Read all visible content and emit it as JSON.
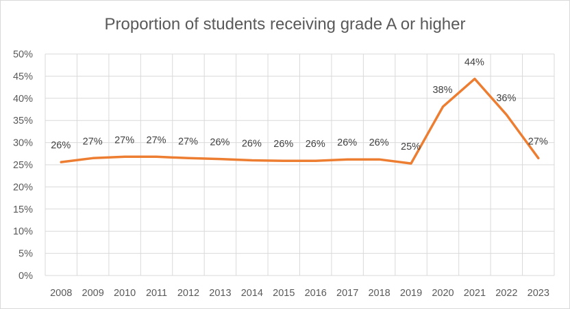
{
  "chart_data": {
    "type": "line",
    "title": "Proportion of students receiving grade A or higher",
    "xlabel": "",
    "ylabel": "",
    "ylim": [
      0,
      50
    ],
    "ytick_step": 5,
    "ytick_format": "percent",
    "grid": true,
    "legend": "none",
    "categories": [
      "2008",
      "2009",
      "2010",
      "2011",
      "2012",
      "2013",
      "2014",
      "2015",
      "2016",
      "2017",
      "2018",
      "2019",
      "2020",
      "2021",
      "2022",
      "2023"
    ],
    "series": [
      {
        "color": "#ED7D31",
        "values": [
          25.6,
          26.5,
          26.8,
          26.8,
          26.5,
          26.3,
          26.0,
          25.9,
          25.9,
          26.2,
          26.2,
          25.3,
          38.1,
          44.4,
          36.3,
          26.5
        ],
        "data_labels": [
          "26%",
          "27%",
          "27%",
          "27%",
          "27%",
          "26%",
          "26%",
          "26%",
          "26%",
          "26%",
          "26%",
          "25%",
          "38%",
          "44%",
          "36%",
          "27%"
        ]
      }
    ]
  }
}
